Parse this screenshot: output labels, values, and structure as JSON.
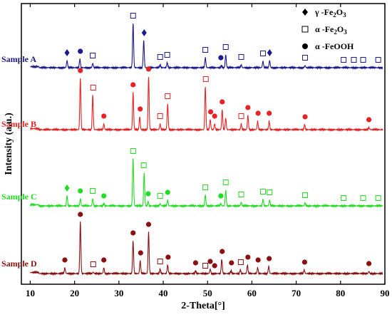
{
  "chart_data": {
    "type": "line",
    "xlabel": "2-Theta[°]",
    "ylabel": "Intensity (a.u.)",
    "xlim": [
      8,
      90
    ],
    "x_ticks": [
      "10",
      "20",
      "30",
      "40",
      "50",
      "60",
      "70",
      "80",
      "90"
    ],
    "y_ticks_shown": false,
    "grid": false,
    "legend_position": "top-right",
    "legend": [
      {
        "marker": "diamond-filled",
        "greek": "γ",
        "label": " -Fe",
        "sub": "2",
        "label2": "O",
        "sub2": "3"
      },
      {
        "marker": "square-open",
        "greek": "α",
        "label": " -Fe",
        "sub": "2",
        "label2": "O",
        "sub2": "3"
      },
      {
        "marker": "circle-filled",
        "greek": "α",
        "label": " -FeOOH",
        "sub": "",
        "label2": "",
        "sub2": ""
      }
    ],
    "series": [
      {
        "name": "Sample A",
        "color": "#1a1a8c",
        "baseline": 26,
        "peaks": [
          {
            "x": 18.3,
            "h": 10
          },
          {
            "x": 21.2,
            "h": 12
          },
          {
            "x": 24.1,
            "h": 6
          },
          {
            "x": 33.2,
            "h": 62
          },
          {
            "x": 35.6,
            "h": 38
          },
          {
            "x": 39.3,
            "h": 4
          },
          {
            "x": 40.9,
            "h": 7
          },
          {
            "x": 49.5,
            "h": 14
          },
          {
            "x": 53.1,
            "h": 3
          },
          {
            "x": 54.1,
            "h": 18
          },
          {
            "x": 57.6,
            "h": 4
          },
          {
            "x": 62.5,
            "h": 9
          },
          {
            "x": 64.0,
            "h": 10
          },
          {
            "x": 72.0,
            "h": 3
          }
        ],
        "markers": [
          {
            "x": 18.3,
            "type": "diamond"
          },
          {
            "x": 21.3,
            "type": "circle"
          },
          {
            "x": 24.1,
            "type": "square"
          },
          {
            "x": 33.2,
            "type": "square"
          },
          {
            "x": 35.7,
            "type": "diamond"
          },
          {
            "x": 39.3,
            "type": "square"
          },
          {
            "x": 40.9,
            "type": "square"
          },
          {
            "x": 49.5,
            "type": "square"
          },
          {
            "x": 53.0,
            "type": "circle"
          },
          {
            "x": 54.1,
            "type": "square"
          },
          {
            "x": 57.6,
            "type": "square"
          },
          {
            "x": 62.5,
            "type": "square"
          },
          {
            "x": 64.0,
            "type": "diamond"
          },
          {
            "x": 72.0,
            "type": "square"
          },
          {
            "x": 80.7,
            "type": "square"
          },
          {
            "x": 83.0,
            "type": "square"
          },
          {
            "x": 85.1,
            "type": "square"
          },
          {
            "x": 88.5,
            "type": "square"
          }
        ]
      },
      {
        "name": "Sample B",
        "color": "#e62222",
        "baseline": 42,
        "peaks": [
          {
            "x": 21.3,
            "h": 72
          },
          {
            "x": 24.1,
            "h": 48
          },
          {
            "x": 26.6,
            "h": 8
          },
          {
            "x": 33.2,
            "h": 52
          },
          {
            "x": 34.7,
            "h": 18
          },
          {
            "x": 36.7,
            "h": 74
          },
          {
            "x": 39.3,
            "h": 8
          },
          {
            "x": 41.0,
            "h": 36
          },
          {
            "x": 49.5,
            "h": 60
          },
          {
            "x": 50.6,
            "h": 14
          },
          {
            "x": 51.6,
            "h": 8
          },
          {
            "x": 53.3,
            "h": 28
          },
          {
            "x": 54.1,
            "h": 16
          },
          {
            "x": 57.6,
            "h": 8
          },
          {
            "x": 59.1,
            "h": 20
          },
          {
            "x": 61.3,
            "h": 12
          },
          {
            "x": 63.9,
            "h": 12
          },
          {
            "x": 71.9,
            "h": 7
          },
          {
            "x": 86.4,
            "h": 3
          }
        ],
        "markers": [
          {
            "x": 21.3,
            "type": "circle"
          },
          {
            "x": 24.2,
            "type": "square"
          },
          {
            "x": 26.6,
            "type": "circle"
          },
          {
            "x": 33.2,
            "type": "circle"
          },
          {
            "x": 34.8,
            "type": "circle"
          },
          {
            "x": 36.7,
            "type": "circle"
          },
          {
            "x": 39.3,
            "type": "square"
          },
          {
            "x": 41.0,
            "type": "square"
          },
          {
            "x": 49.6,
            "type": "square"
          },
          {
            "x": 50.7,
            "type": "circle"
          },
          {
            "x": 51.6,
            "type": "circle"
          },
          {
            "x": 53.3,
            "type": "circle"
          },
          {
            "x": 57.6,
            "type": "square"
          },
          {
            "x": 59.1,
            "type": "circle"
          },
          {
            "x": 61.4,
            "type": "circle"
          },
          {
            "x": 63.9,
            "type": "circle"
          },
          {
            "x": 72.0,
            "type": "circle"
          },
          {
            "x": 86.4,
            "type": "circle"
          }
        ]
      },
      {
        "name": "Sample C",
        "color": "#22dd22",
        "baseline": 28,
        "peaks": [
          {
            "x": 18.3,
            "h": 14
          },
          {
            "x": 21.3,
            "h": 10
          },
          {
            "x": 24.1,
            "h": 10
          },
          {
            "x": 26.6,
            "h": 3
          },
          {
            "x": 33.2,
            "h": 66
          },
          {
            "x": 35.7,
            "h": 46
          },
          {
            "x": 36.6,
            "h": 6
          },
          {
            "x": 39.3,
            "h": 3
          },
          {
            "x": 41.0,
            "h": 8
          },
          {
            "x": 49.5,
            "h": 15
          },
          {
            "x": 53.0,
            "h": 3
          },
          {
            "x": 54.1,
            "h": 22
          },
          {
            "x": 57.6,
            "h": 5
          },
          {
            "x": 62.5,
            "h": 9
          },
          {
            "x": 64.0,
            "h": 8
          },
          {
            "x": 72.0,
            "h": 4
          }
        ],
        "markers": [
          {
            "x": 18.3,
            "type": "diamond"
          },
          {
            "x": 21.3,
            "type": "circle"
          },
          {
            "x": 24.1,
            "type": "square"
          },
          {
            "x": 26.6,
            "type": "circle"
          },
          {
            "x": 33.2,
            "type": "square"
          },
          {
            "x": 35.6,
            "type": "square"
          },
          {
            "x": 36.6,
            "type": "circle"
          },
          {
            "x": 39.3,
            "type": "square"
          },
          {
            "x": 41.0,
            "type": "circle"
          },
          {
            "x": 49.5,
            "type": "square"
          },
          {
            "x": 53.0,
            "type": "circle"
          },
          {
            "x": 54.1,
            "type": "square"
          },
          {
            "x": 57.6,
            "type": "square"
          },
          {
            "x": 62.5,
            "type": "square"
          },
          {
            "x": 64.0,
            "type": "square"
          },
          {
            "x": 72.0,
            "type": "square"
          },
          {
            "x": 80.7,
            "type": "square"
          },
          {
            "x": 85.1,
            "type": "square"
          },
          {
            "x": 88.5,
            "type": "square"
          }
        ]
      },
      {
        "name": "Sample D",
        "color": "#8b1010",
        "baseline": 30,
        "peaks": [
          {
            "x": 17.8,
            "h": 8
          },
          {
            "x": 21.3,
            "h": 72
          },
          {
            "x": 24.2,
            "h": 2
          },
          {
            "x": 26.6,
            "h": 8
          },
          {
            "x": 33.2,
            "h": 46
          },
          {
            "x": 34.8,
            "h": 18
          },
          {
            "x": 36.7,
            "h": 58
          },
          {
            "x": 39.3,
            "h": 6
          },
          {
            "x": 41.0,
            "h": 12
          },
          {
            "x": 47.3,
            "h": 4
          },
          {
            "x": 50.6,
            "h": 6
          },
          {
            "x": 53.2,
            "h": 20
          },
          {
            "x": 55.3,
            "h": 4
          },
          {
            "x": 57.4,
            "h": 5
          },
          {
            "x": 59.0,
            "h": 12
          },
          {
            "x": 61.3,
            "h": 8
          },
          {
            "x": 63.8,
            "h": 10
          },
          {
            "x": 71.8,
            "h": 5
          },
          {
            "x": 86.4,
            "h": 3
          }
        ],
        "markers": [
          {
            "x": 17.8,
            "type": "circle"
          },
          {
            "x": 21.3,
            "type": "circle"
          },
          {
            "x": 24.2,
            "type": "square"
          },
          {
            "x": 26.6,
            "type": "circle"
          },
          {
            "x": 33.2,
            "type": "circle"
          },
          {
            "x": 34.9,
            "type": "circle"
          },
          {
            "x": 36.7,
            "type": "circle"
          },
          {
            "x": 39.3,
            "type": "square"
          },
          {
            "x": 41.1,
            "type": "circle"
          },
          {
            "x": 47.3,
            "type": "circle"
          },
          {
            "x": 49.5,
            "type": "square"
          },
          {
            "x": 50.6,
            "type": "circle"
          },
          {
            "x": 51.6,
            "type": "circle"
          },
          {
            "x": 53.3,
            "type": "circle"
          },
          {
            "x": 55.4,
            "type": "circle"
          },
          {
            "x": 57.5,
            "type": "square"
          },
          {
            "x": 59.1,
            "type": "circle"
          },
          {
            "x": 61.4,
            "type": "circle"
          },
          {
            "x": 63.9,
            "type": "circle"
          },
          {
            "x": 71.9,
            "type": "circle"
          },
          {
            "x": 86.4,
            "type": "circle"
          }
        ]
      }
    ]
  }
}
